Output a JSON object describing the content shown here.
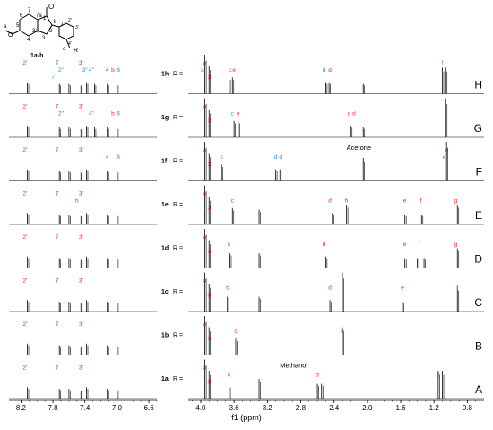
{
  "structure_label": "1a-h",
  "structure_atoms": {
    "a": "a",
    "O": "O",
    "n5": "5",
    "n6": "6",
    "n7": "7",
    "n7a": "7a",
    "n1": "1",
    "O1": "O",
    "n2": "2",
    "n3": "3",
    "n3a": "3a",
    "n4": "4",
    "b": "b",
    "n1p": "1'",
    "n2p": "2'",
    "n3p": "3'",
    "n4p": "4'",
    "c": "c",
    "R": "R"
  },
  "chart_data": {
    "type": "nmr_stack",
    "xlabel": "f1 (ppm)",
    "x_ticks": [
      "8.2",
      "7.8",
      "7.4",
      "7.0",
      "6.6",
      "4.0",
      "3.6",
      "3.2",
      "2.8",
      "2.4",
      "2.0",
      "1.6",
      "1.2",
      "0.8"
    ],
    "color_red": "#e8262a",
    "color_blue": "#2a8fd6",
    "axis_break": {
      "from": 6.5,
      "to": 4.15
    },
    "spectra": [
      {
        "id": "H",
        "compound": "1h",
        "R": "R =",
        "peaks": [
          [
            8.12,
            0.35
          ],
          [
            7.72,
            0.3
          ],
          [
            7.6,
            0.3
          ],
          [
            7.45,
            0.25
          ],
          [
            7.38,
            0.35
          ],
          [
            7.28,
            0.3
          ],
          [
            7.12,
            0.3
          ],
          [
            7.0,
            0.3
          ],
          [
            3.95,
            0.95
          ],
          [
            3.9,
            0.85
          ],
          [
            3.66,
            0.5
          ],
          [
            3.62,
            0.5
          ],
          [
            2.5,
            0.35
          ],
          [
            2.46,
            0.35
          ],
          [
            2.05,
            0.3
          ],
          [
            1.1,
            0.8
          ],
          [
            1.06,
            0.8
          ]
        ],
        "labels": [
          {
            "t": "2'",
            "x": 8.15,
            "c": "r",
            "row": 0
          },
          {
            "t": "7",
            "x": 7.75,
            "c": "r",
            "row": 0
          },
          {
            "t": "2\"",
            "x": 7.7,
            "c": "b",
            "row": 1
          },
          {
            "t": "7",
            "x": 7.8,
            "c": "b",
            "row": 2
          },
          {
            "t": "3'",
            "x": 7.45,
            "c": "r",
            "row": 0
          },
          {
            "t": "3\"",
            "x": 7.4,
            "c": "b",
            "row": 1
          },
          {
            "t": "4\"",
            "x": 7.32,
            "c": "b",
            "row": 1
          },
          {
            "t": "4",
            "x": 7.12,
            "c": "r",
            "row": 1
          },
          {
            "t": "b",
            "x": 7.05,
            "c": "r",
            "row": 1
          },
          {
            "t": "6",
            "x": 6.98,
            "c": "b",
            "row": 1
          },
          {
            "t": "a",
            "x": 3.95,
            "c": "r",
            "row": 0
          },
          {
            "t": "a",
            "x": 3.98,
            "c": "b",
            "row": 1
          },
          {
            "t": "3",
            "x": 3.9,
            "c": "r",
            "row": 2
          },
          {
            "t": "c",
            "x": 3.65,
            "c": "r",
            "row": 1
          },
          {
            "t": "e",
            "x": 3.6,
            "c": "r",
            "row": 1
          },
          {
            "t": "d",
            "x": 2.52,
            "c": "b",
            "row": 1
          },
          {
            "t": "d",
            "x": 2.45,
            "c": "r",
            "row": 1
          },
          {
            "t": "f",
            "x": 1.1,
            "c": "b",
            "row": 0
          }
        ]
      },
      {
        "id": "G",
        "compound": "1g",
        "R": "R =",
        "peaks": [
          [
            8.12,
            0.35
          ],
          [
            7.72,
            0.3
          ],
          [
            7.6,
            0.3
          ],
          [
            7.45,
            0.25
          ],
          [
            7.38,
            0.35
          ],
          [
            7.28,
            0.3
          ],
          [
            7.12,
            0.3
          ],
          [
            7.0,
            0.3
          ],
          [
            3.95,
            0.95
          ],
          [
            3.9,
            0.85
          ],
          [
            3.6,
            0.5
          ],
          [
            3.55,
            0.5
          ],
          [
            2.2,
            0.35
          ],
          [
            2.05,
            0.3
          ],
          [
            1.06,
            0.95
          ]
        ],
        "labels": [
          {
            "t": "2'",
            "x": 8.15,
            "c": "r",
            "row": 0
          },
          {
            "t": "7",
            "x": 7.75,
            "c": "r",
            "row": 0
          },
          {
            "t": "2\"",
            "x": 7.7,
            "c": "b",
            "row": 1
          },
          {
            "t": "3'",
            "x": 7.45,
            "c": "r",
            "row": 0
          },
          {
            "t": "4\"",
            "x": 7.32,
            "c": "b",
            "row": 1
          },
          {
            "t": "b",
            "x": 7.05,
            "c": "r",
            "row": 1
          },
          {
            "t": "6",
            "x": 6.98,
            "c": "b",
            "row": 1
          },
          {
            "t": "a",
            "x": 3.95,
            "c": "r",
            "row": 0
          },
          {
            "t": "3",
            "x": 3.9,
            "c": "r",
            "row": 2
          },
          {
            "t": "c",
            "x": 3.62,
            "c": "b",
            "row": 1
          },
          {
            "t": "e",
            "x": 3.55,
            "c": "r",
            "row": 1
          },
          {
            "t": "d",
            "x": 2.22,
            "c": "r",
            "row": 1
          },
          {
            "t": "d",
            "x": 2.16,
            "c": "r",
            "row": 1
          }
        ]
      },
      {
        "id": "F",
        "compound": "1f",
        "R": "R =",
        "annotation": "Acetone",
        "peaks": [
          [
            8.12,
            0.35
          ],
          [
            7.72,
            0.3
          ],
          [
            7.6,
            0.3
          ],
          [
            7.45,
            0.25
          ],
          [
            7.38,
            0.35
          ],
          [
            7.12,
            0.3
          ],
          [
            7.0,
            0.3
          ],
          [
            3.95,
            0.95
          ],
          [
            3.9,
            0.85
          ],
          [
            3.75,
            0.5
          ],
          [
            3.1,
            0.35
          ],
          [
            3.05,
            0.35
          ],
          [
            2.05,
            0.7
          ],
          [
            1.05,
            0.95
          ]
        ],
        "labels": [
          {
            "t": "2'",
            "x": 8.15,
            "c": "r",
            "row": 0
          },
          {
            "t": "7",
            "x": 7.75,
            "c": "r",
            "row": 0
          },
          {
            "t": "3'",
            "x": 7.45,
            "c": "r",
            "row": 0
          },
          {
            "t": "4",
            "x": 7.12,
            "c": "b",
            "row": 1
          },
          {
            "t": "6",
            "x": 6.98,
            "c": "b",
            "row": 1
          },
          {
            "t": "a",
            "x": 3.95,
            "c": "r",
            "row": 0
          },
          {
            "t": "3",
            "x": 3.9,
            "c": "r",
            "row": 2
          },
          {
            "t": "c",
            "x": 3.75,
            "c": "r",
            "row": 1
          },
          {
            "t": "d",
            "x": 3.1,
            "c": "b",
            "row": 1
          },
          {
            "t": "d",
            "x": 3.04,
            "c": "b",
            "row": 1
          },
          {
            "t": "e",
            "x": 1.05,
            "c": "r",
            "row": 0
          },
          {
            "t": "e",
            "x": 1.08,
            "c": "b",
            "row": 1
          }
        ]
      },
      {
        "id": "E",
        "compound": "1e",
        "R": "R =",
        "peaks": [
          [
            8.12,
            0.35
          ],
          [
            7.72,
            0.3
          ],
          [
            7.6,
            0.3
          ],
          [
            7.45,
            0.25
          ],
          [
            7.38,
            0.35
          ],
          [
            7.12,
            0.3
          ],
          [
            7.0,
            0.3
          ],
          [
            3.95,
            0.95
          ],
          [
            3.9,
            0.85
          ],
          [
            3.62,
            0.5
          ],
          [
            3.3,
            0.45
          ],
          [
            2.42,
            0.35
          ],
          [
            2.25,
            0.6
          ],
          [
            1.55,
            0.3
          ],
          [
            1.35,
            0.3
          ],
          [
            0.92,
            0.6
          ]
        ],
        "labels": [
          {
            "t": "2'",
            "x": 8.15,
            "c": "r",
            "row": 0
          },
          {
            "t": "7",
            "x": 7.75,
            "c": "r",
            "row": 0
          },
          {
            "t": "b",
            "x": 7.5,
            "c": "b",
            "row": 1
          },
          {
            "t": "3'",
            "x": 7.45,
            "c": "r",
            "row": 0
          },
          {
            "t": "a",
            "x": 3.95,
            "c": "r",
            "row": 0
          },
          {
            "t": "3",
            "x": 3.9,
            "c": "r",
            "row": 2
          },
          {
            "t": "c",
            "x": 3.62,
            "c": "r",
            "row": 1
          },
          {
            "t": "d",
            "x": 2.45,
            "c": "r",
            "row": 1
          },
          {
            "t": "h",
            "x": 2.25,
            "c": "r",
            "row": 1
          },
          {
            "t": "e",
            "x": 1.55,
            "c": "r",
            "row": 1
          },
          {
            "t": "f",
            "x": 1.36,
            "c": "r",
            "row": 1
          },
          {
            "t": "g",
            "x": 0.94,
            "c": "r",
            "row": 1
          }
        ]
      },
      {
        "id": "D",
        "compound": "1d",
        "R": "R =",
        "peaks": [
          [
            8.12,
            0.35
          ],
          [
            7.72,
            0.3
          ],
          [
            7.6,
            0.3
          ],
          [
            7.45,
            0.25
          ],
          [
            7.38,
            0.35
          ],
          [
            7.12,
            0.3
          ],
          [
            7.0,
            0.3
          ],
          [
            3.95,
            0.95
          ],
          [
            3.9,
            0.85
          ],
          [
            3.65,
            0.45
          ],
          [
            3.3,
            0.45
          ],
          [
            2.5,
            0.35
          ],
          [
            1.55,
            0.3
          ],
          [
            1.4,
            0.3
          ],
          [
            1.32,
            0.3
          ],
          [
            0.92,
            0.6
          ]
        ],
        "labels": [
          {
            "t": "2'",
            "x": 8.15,
            "c": "r",
            "row": 0
          },
          {
            "t": "7",
            "x": 7.75,
            "c": "r",
            "row": 0
          },
          {
            "t": "3'",
            "x": 7.45,
            "c": "r",
            "row": 0
          },
          {
            "t": "a",
            "x": 3.95,
            "c": "r",
            "row": 0
          },
          {
            "t": "3",
            "x": 3.9,
            "c": "r",
            "row": 2
          },
          {
            "t": "c",
            "x": 3.66,
            "c": "r",
            "row": 1
          },
          {
            "t": "d",
            "x": 2.52,
            "c": "r",
            "row": 1
          },
          {
            "t": "e",
            "x": 1.55,
            "c": "r",
            "row": 1
          },
          {
            "t": "f",
            "x": 1.38,
            "c": "r",
            "row": 1
          },
          {
            "t": "g",
            "x": 0.94,
            "c": "r",
            "row": 1
          }
        ]
      },
      {
        "id": "C",
        "compound": "1c",
        "R": "R =",
        "peaks": [
          [
            8.12,
            0.35
          ],
          [
            7.72,
            0.3
          ],
          [
            7.6,
            0.3
          ],
          [
            7.45,
            0.25
          ],
          [
            7.38,
            0.35
          ],
          [
            7.12,
            0.3
          ],
          [
            7.0,
            0.3
          ],
          [
            3.95,
            0.95
          ],
          [
            3.9,
            0.85
          ],
          [
            3.68,
            0.45
          ],
          [
            3.3,
            0.45
          ],
          [
            2.45,
            0.35
          ],
          [
            2.3,
            0.95
          ],
          [
            1.58,
            0.3
          ],
          [
            0.92,
            0.75
          ]
        ],
        "labels": [
          {
            "t": "2'",
            "x": 8.15,
            "c": "r",
            "row": 0
          },
          {
            "t": "7",
            "x": 7.75,
            "c": "r",
            "row": 0
          },
          {
            "t": "3'",
            "x": 7.45,
            "c": "r",
            "row": 0
          },
          {
            "t": "a",
            "x": 3.95,
            "c": "r",
            "row": 0
          },
          {
            "t": "3",
            "x": 3.9,
            "c": "r",
            "row": 2
          },
          {
            "t": "c",
            "x": 3.68,
            "c": "r",
            "row": 1
          },
          {
            "t": "d",
            "x": 2.45,
            "c": "r",
            "row": 1
          },
          {
            "t": "e",
            "x": 1.58,
            "c": "r",
            "row": 1
          },
          {
            "t": "f",
            "x": 0.92,
            "c": "r",
            "row": 1
          }
        ]
      },
      {
        "id": "B",
        "compound": "1b",
        "R": "R =",
        "peaks": [
          [
            8.12,
            0.35
          ],
          [
            7.72,
            0.3
          ],
          [
            7.6,
            0.3
          ],
          [
            7.45,
            0.25
          ],
          [
            7.38,
            0.35
          ],
          [
            7.12,
            0.3
          ],
          [
            7.0,
            0.3
          ],
          [
            3.95,
            0.95
          ],
          [
            3.9,
            0.85
          ],
          [
            3.58,
            0.5
          ],
          [
            2.3,
            0.85
          ]
        ],
        "labels": [
          {
            "t": "2'",
            "x": 8.15,
            "c": "r",
            "row": 0
          },
          {
            "t": "7",
            "x": 7.75,
            "c": "r",
            "row": 0
          },
          {
            "t": "3'",
            "x": 7.45,
            "c": "r",
            "row": 0
          },
          {
            "t": "a",
            "x": 3.95,
            "c": "r",
            "row": 0
          },
          {
            "t": "3",
            "x": 3.9,
            "c": "r",
            "row": 2
          },
          {
            "t": "c",
            "x": 3.58,
            "c": "r",
            "row": 1
          },
          {
            "t": "d",
            "x": 2.3,
            "c": "b",
            "row": 1
          }
        ]
      },
      {
        "id": "A",
        "compound": "1a",
        "R": "R =",
        "annotation": "Methanol",
        "peaks": [
          [
            8.12,
            0.35
          ],
          [
            7.72,
            0.3
          ],
          [
            7.6,
            0.3
          ],
          [
            7.45,
            0.25
          ],
          [
            7.38,
            0.35
          ],
          [
            7.12,
            0.3
          ],
          [
            7.0,
            0.3
          ],
          [
            3.95,
            0.95
          ],
          [
            3.9,
            0.85
          ],
          [
            3.66,
            0.4
          ],
          [
            3.3,
            0.6
          ],
          [
            2.6,
            0.45
          ],
          [
            2.55,
            0.45
          ],
          [
            1.15,
            0.85
          ],
          [
            1.1,
            0.85
          ]
        ],
        "labels": [
          {
            "t": "2'",
            "x": 8.15,
            "c": "r",
            "row": 0
          },
          {
            "t": "7",
            "x": 7.75,
            "c": "r",
            "row": 0
          },
          {
            "t": "3'",
            "x": 7.45,
            "c": "r",
            "row": 0
          },
          {
            "t": "a",
            "x": 3.95,
            "c": "r",
            "row": 0
          },
          {
            "t": "3",
            "x": 3.9,
            "c": "r",
            "row": 2
          },
          {
            "t": "c",
            "x": 3.66,
            "c": "r",
            "row": 1
          },
          {
            "t": "d",
            "x": 2.6,
            "c": "r",
            "row": 1
          },
          {
            "t": "e",
            "x": 1.15,
            "c": "r",
            "row": 1
          }
        ]
      }
    ]
  }
}
